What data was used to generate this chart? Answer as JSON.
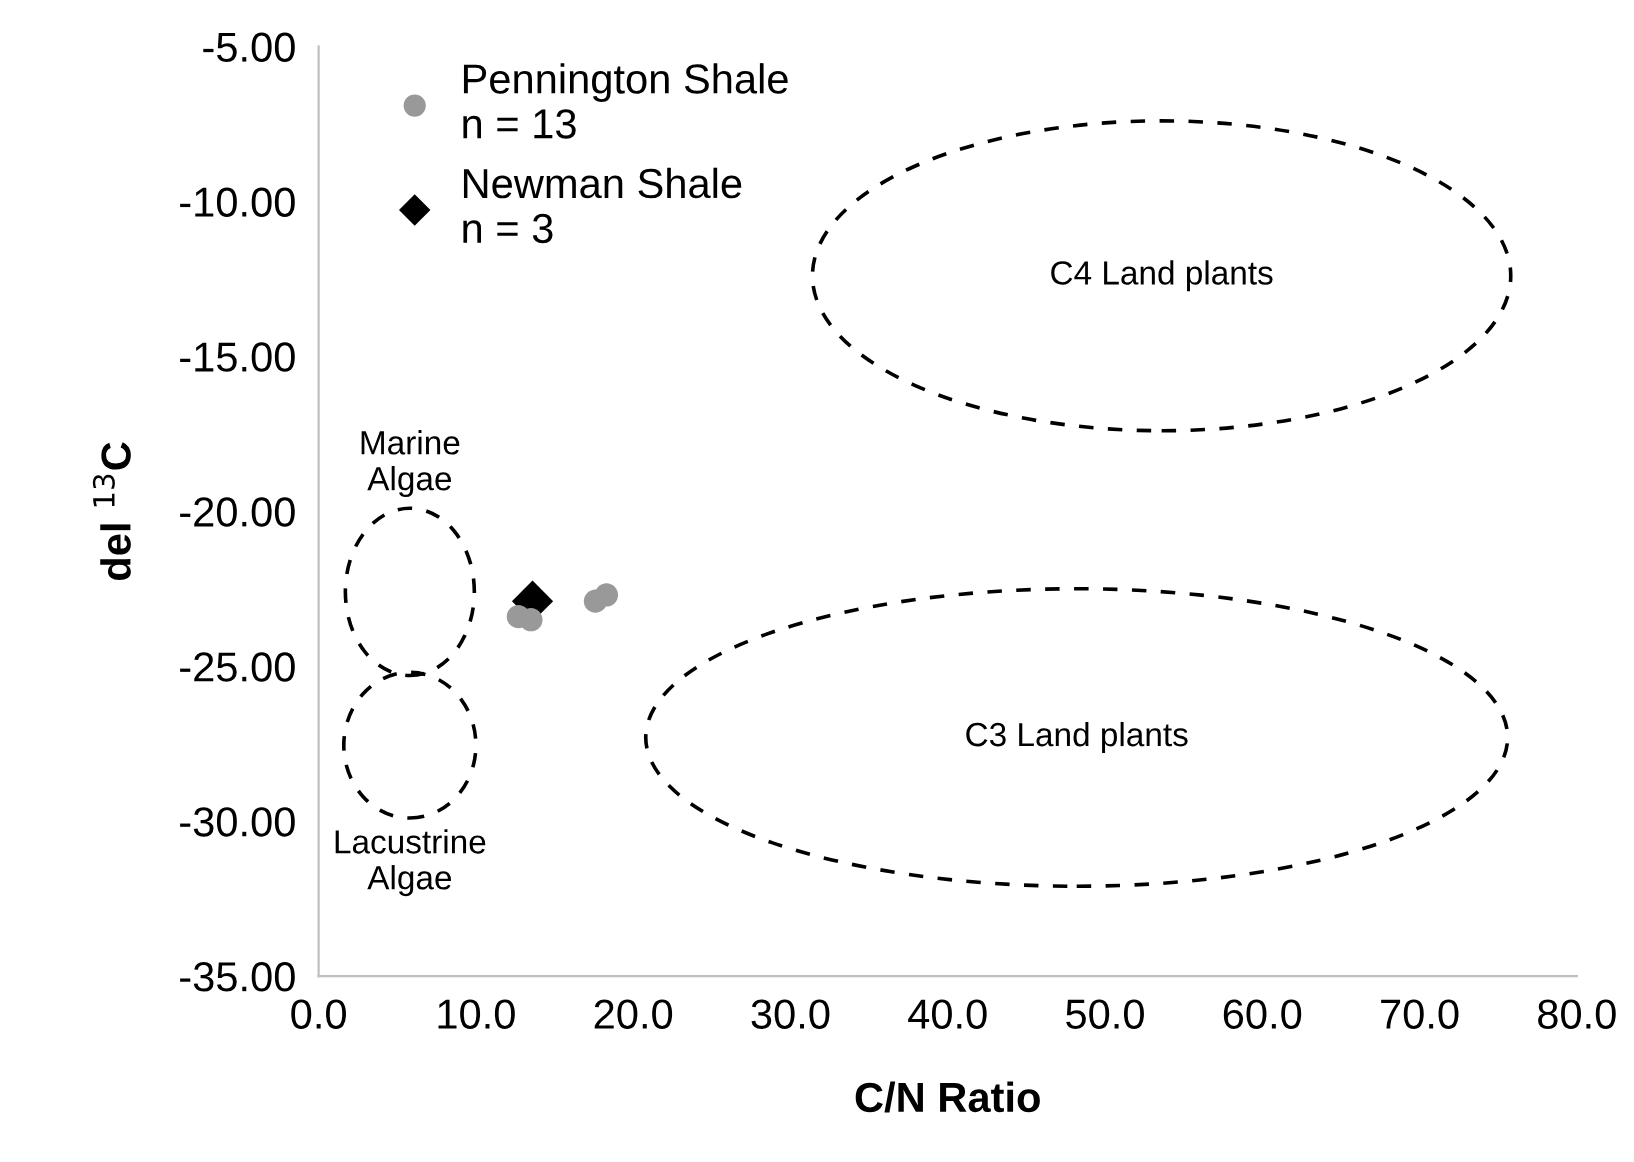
{
  "chart_data": {
    "type": "scatter",
    "xlabel": "C/N Ratio",
    "ylabel": "del $^{13}$C",
    "xlim": [
      0,
      80
    ],
    "ylim": [
      -35,
      -5
    ],
    "xticks": [
      {
        "value": 0,
        "label": "0.0"
      },
      {
        "value": 10,
        "label": "10.0"
      },
      {
        "value": 20,
        "label": "20.0"
      },
      {
        "value": 30,
        "label": "30.0"
      },
      {
        "value": 40,
        "label": "40.0"
      },
      {
        "value": 50,
        "label": "50.0"
      },
      {
        "value": 60,
        "label": "60.0"
      },
      {
        "value": 70,
        "label": "70.0"
      },
      {
        "value": 80,
        "label": "80.0"
      }
    ],
    "yticks": [
      {
        "value": -35,
        "label": "-35.00"
      },
      {
        "value": -30,
        "label": "-30.00"
      },
      {
        "value": -25,
        "label": "-25.00"
      },
      {
        "value": -20,
        "label": "-20.00"
      },
      {
        "value": -15,
        "label": "-15.00"
      },
      {
        "value": -10,
        "label": "-10.00"
      },
      {
        "value": -5,
        "label": "-5.00"
      }
    ],
    "grid": false,
    "legend": "top left",
    "series": [
      {
        "name": "Newman Shale\nn = 3",
        "marker": "diamond",
        "color": "#000000",
        "x": [
          13.6
        ],
        "values": [
          -22.9
        ]
      },
      {
        "name": "Pennington Shale\nn = 13",
        "marker": "circle",
        "color": "#999999",
        "x": [
          12.7,
          13.5,
          17.6,
          18.3
        ],
        "values": [
          -23.4,
          -23.5,
          -22.9,
          -22.7
        ]
      }
    ],
    "annotations": [
      "Marine\nAlgae",
      "Lacustrine\nAlgae",
      "C4 Land plants",
      "C3 Land plants"
    ]
  }
}
